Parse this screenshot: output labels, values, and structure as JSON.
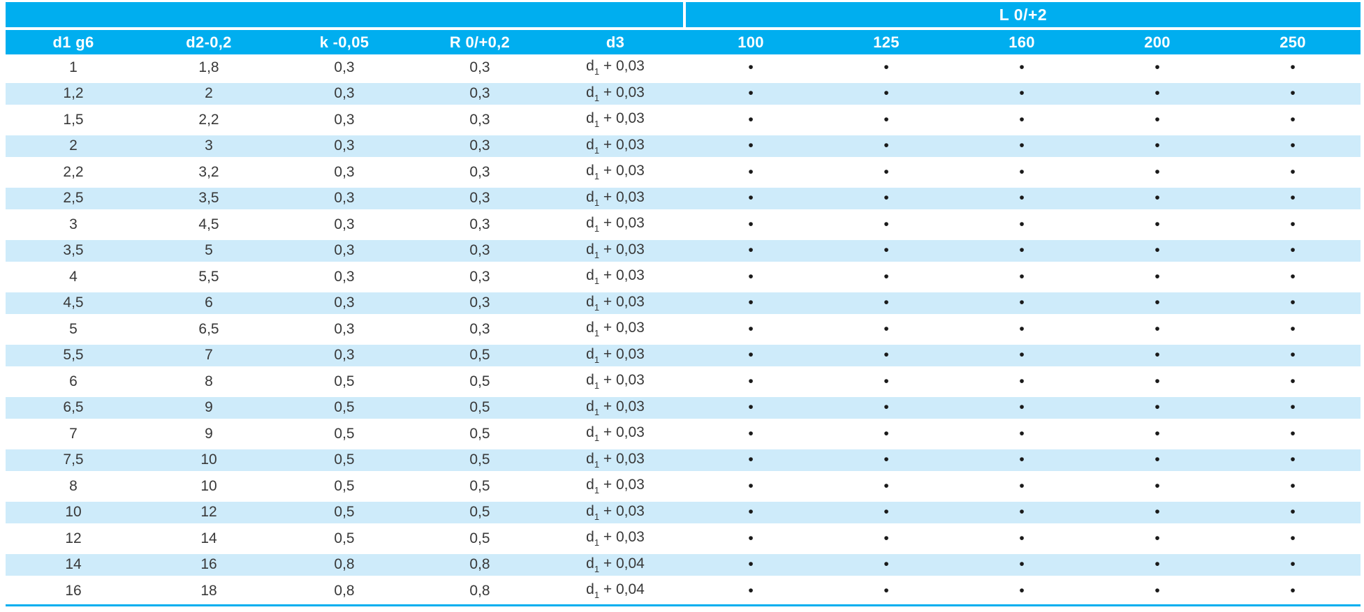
{
  "table": {
    "group_header": "L 0/+2",
    "columns": [
      "d1 g6",
      "d2-0,2",
      "k -0,05",
      "R 0/+0,2",
      "d3",
      "100",
      "125",
      "160",
      "200",
      "250"
    ],
    "length_columns": [
      "100",
      "125",
      "160",
      "200",
      "250"
    ],
    "bullet_char": "•",
    "d3_format": {
      "base": "d",
      "sub": "1",
      "plus": " + "
    },
    "rows": [
      {
        "d1": "1",
        "d2": "1,8",
        "k": "0,3",
        "r": "0,3",
        "d3_tail": "0,03",
        "available": [
          true,
          true,
          true,
          true,
          true
        ]
      },
      {
        "d1": "1,2",
        "d2": "2",
        "k": "0,3",
        "r": "0,3",
        "d3_tail": "0,03",
        "available": [
          true,
          true,
          true,
          true,
          true
        ]
      },
      {
        "d1": "1,5",
        "d2": "2,2",
        "k": "0,3",
        "r": "0,3",
        "d3_tail": "0,03",
        "available": [
          true,
          true,
          true,
          true,
          true
        ]
      },
      {
        "d1": "2",
        "d2": "3",
        "k": "0,3",
        "r": "0,3",
        "d3_tail": "0,03",
        "available": [
          true,
          true,
          true,
          true,
          true
        ]
      },
      {
        "d1": "2,2",
        "d2": "3,2",
        "k": "0,3",
        "r": "0,3",
        "d3_tail": "0,03",
        "available": [
          true,
          true,
          true,
          true,
          true
        ]
      },
      {
        "d1": "2,5",
        "d2": "3,5",
        "k": "0,3",
        "r": "0,3",
        "d3_tail": "0,03",
        "available": [
          true,
          true,
          true,
          true,
          true
        ]
      },
      {
        "d1": "3",
        "d2": "4,5",
        "k": "0,3",
        "r": "0,3",
        "d3_tail": "0,03",
        "available": [
          true,
          true,
          true,
          true,
          true
        ]
      },
      {
        "d1": "3,5",
        "d2": "5",
        "k": "0,3",
        "r": "0,3",
        "d3_tail": "0,03",
        "available": [
          true,
          true,
          true,
          true,
          true
        ]
      },
      {
        "d1": "4",
        "d2": "5,5",
        "k": "0,3",
        "r": "0,3",
        "d3_tail": "0,03",
        "available": [
          true,
          true,
          true,
          true,
          true
        ]
      },
      {
        "d1": "4,5",
        "d2": "6",
        "k": "0,3",
        "r": "0,3",
        "d3_tail": "0,03",
        "available": [
          true,
          true,
          true,
          true,
          true
        ]
      },
      {
        "d1": "5",
        "d2": "6,5",
        "k": "0,3",
        "r": "0,3",
        "d3_tail": "0,03",
        "available": [
          true,
          true,
          true,
          true,
          true
        ]
      },
      {
        "d1": "5,5",
        "d2": "7",
        "k": "0,3",
        "r": "0,5",
        "d3_tail": "0,03",
        "available": [
          true,
          true,
          true,
          true,
          true
        ]
      },
      {
        "d1": "6",
        "d2": "8",
        "k": "0,5",
        "r": "0,5",
        "d3_tail": "0,03",
        "available": [
          true,
          true,
          true,
          true,
          true
        ]
      },
      {
        "d1": "6,5",
        "d2": "9",
        "k": "0,5",
        "r": "0,5",
        "d3_tail": "0,03",
        "available": [
          true,
          true,
          true,
          true,
          true
        ]
      },
      {
        "d1": "7",
        "d2": "9",
        "k": "0,5",
        "r": "0,5",
        "d3_tail": "0,03",
        "available": [
          true,
          true,
          true,
          true,
          true
        ]
      },
      {
        "d1": "7,5",
        "d2": "10",
        "k": "0,5",
        "r": "0,5",
        "d3_tail": "0,03",
        "available": [
          true,
          true,
          true,
          true,
          true
        ]
      },
      {
        "d1": "8",
        "d2": "10",
        "k": "0,5",
        "r": "0,5",
        "d3_tail": "0,03",
        "available": [
          true,
          true,
          true,
          true,
          true
        ]
      },
      {
        "d1": "10",
        "d2": "12",
        "k": "0,5",
        "r": "0,5",
        "d3_tail": "0,03",
        "available": [
          true,
          true,
          true,
          true,
          true
        ]
      },
      {
        "d1": "12",
        "d2": "14",
        "k": "0,5",
        "r": "0,5",
        "d3_tail": "0,03",
        "available": [
          true,
          true,
          true,
          true,
          true
        ]
      },
      {
        "d1": "14",
        "d2": "16",
        "k": "0,8",
        "r": "0,8",
        "d3_tail": "0,04",
        "available": [
          true,
          true,
          true,
          true,
          true
        ]
      },
      {
        "d1": "16",
        "d2": "18",
        "k": "0,8",
        "r": "0,8",
        "d3_tail": "0,04",
        "available": [
          true,
          true,
          true,
          true,
          true
        ]
      }
    ]
  },
  "colors": {
    "accent_cyan": "#00AEEF",
    "stripe_blue": "#CEEBFA",
    "text": "#383838"
  }
}
